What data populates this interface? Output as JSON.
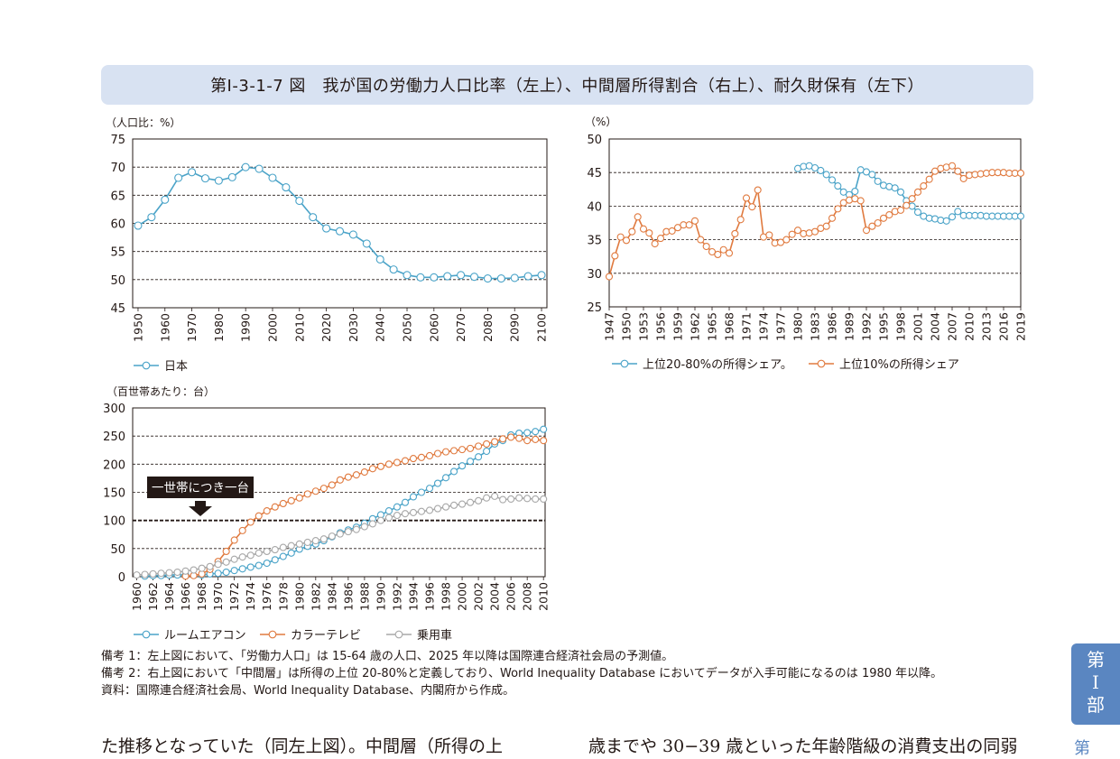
{
  "title": "第Ⅰ-3-1-7 図　我が国の労働力人口比率（左上）、中間層所得割合（右上）、耐久財保有（左下）",
  "chart_data": [
    {
      "id": "labor",
      "type": "line",
      "unit_label": "（人口比：%）",
      "ylim": [
        45,
        75
      ],
      "yticks": [
        45,
        50,
        55,
        60,
        65,
        70,
        75
      ],
      "xlim": [
        1948,
        2102
      ],
      "xticks": [
        1950,
        1960,
        1970,
        1980,
        1990,
        2000,
        2010,
        2020,
        2030,
        2040,
        2050,
        2060,
        2070,
        2080,
        2090,
        2100
      ],
      "grid": "horizontal dashed",
      "legend_position": "bottom-left",
      "series": [
        {
          "name": "日本",
          "color": "#4aa3c8",
          "x": [
            1950,
            1955,
            1960,
            1965,
            1970,
            1975,
            1980,
            1985,
            1990,
            1995,
            2000,
            2005,
            2010,
            2015,
            2020,
            2025,
            2030,
            2035,
            2040,
            2045,
            2050,
            2055,
            2060,
            2065,
            2070,
            2075,
            2080,
            2085,
            2090,
            2095,
            2100
          ],
          "y": [
            59.6,
            61.1,
            64.2,
            68.1,
            69.1,
            68.0,
            67.6,
            68.2,
            70.0,
            69.7,
            68.1,
            66.4,
            64.0,
            61.1,
            59.1,
            58.6,
            58.0,
            56.4,
            53.6,
            51.8,
            50.8,
            50.4,
            50.4,
            50.6,
            50.8,
            50.5,
            50.2,
            50.2,
            50.3,
            50.6,
            50.8
          ]
        }
      ]
    },
    {
      "id": "income",
      "type": "line",
      "unit_label": "（%）",
      "ylim": [
        25,
        50
      ],
      "yticks": [
        25,
        30,
        35,
        40,
        45,
        50
      ],
      "xlim": [
        1947,
        2019
      ],
      "xticks": [
        1947,
        1950,
        1953,
        1956,
        1959,
        1962,
        1965,
        1968,
        1971,
        1974,
        1977,
        1980,
        1983,
        1986,
        1989,
        1992,
        1995,
        1998,
        2001,
        2004,
        2007,
        2010,
        2013,
        2016,
        2019
      ],
      "grid": "horizontal dashed",
      "legend_position": "bottom",
      "series": [
        {
          "name": "上位20-80%の所得シェア。",
          "color": "#4aa3c8",
          "x": [
            1980,
            1981,
            1982,
            1983,
            1984,
            1985,
            1986,
            1987,
            1988,
            1989,
            1990,
            1991,
            1992,
            1993,
            1994,
            1995,
            1996,
            1997,
            1998,
            1999,
            2000,
            2001,
            2002,
            2003,
            2004,
            2005,
            2006,
            2007,
            2008,
            2009,
            2010,
            2011,
            2012,
            2013,
            2014,
            2015,
            2016,
            2017,
            2018,
            2019
          ],
          "y": [
            45.6,
            45.9,
            46.0,
            45.7,
            45.3,
            44.7,
            43.9,
            43.0,
            42.1,
            41.7,
            42.2,
            45.4,
            45.1,
            44.7,
            43.7,
            43.1,
            42.9,
            42.7,
            42.1,
            40.8,
            40.0,
            39.1,
            38.5,
            38.2,
            38.1,
            37.9,
            37.8,
            38.4,
            39.2,
            38.6,
            38.6,
            38.6,
            38.6,
            38.5,
            38.5,
            38.5,
            38.5,
            38.5,
            38.5,
            38.5
          ]
        },
        {
          "name": "上位10%の所得シェア",
          "color": "#e07a3f",
          "x": [
            1947,
            1948,
            1949,
            1950,
            1951,
            1952,
            1953,
            1954,
            1955,
            1956,
            1957,
            1958,
            1959,
            1960,
            1961,
            1962,
            1963,
            1964,
            1965,
            1966,
            1967,
            1968,
            1969,
            1970,
            1971,
            1972,
            1973,
            1974,
            1975,
            1976,
            1977,
            1978,
            1979,
            1980,
            1981,
            1982,
            1983,
            1984,
            1985,
            1986,
            1987,
            1988,
            1989,
            1990,
            1991,
            1992,
            1993,
            1994,
            1995,
            1996,
            1997,
            1998,
            1999,
            2000,
            2001,
            2002,
            2003,
            2004,
            2005,
            2006,
            2007,
            2008,
            2009,
            2010,
            2011,
            2012,
            2013,
            2014,
            2015,
            2016,
            2017,
            2018,
            2019
          ],
          "y": [
            29.5,
            32.6,
            35.4,
            34.9,
            36.2,
            38.4,
            36.6,
            36.0,
            34.4,
            35.2,
            36.2,
            36.3,
            36.8,
            37.2,
            37.2,
            37.8,
            35.0,
            34.0,
            33.2,
            32.8,
            33.5,
            33.0,
            35.9,
            38.0,
            41.2,
            39.9,
            42.4,
            35.4,
            35.7,
            34.5,
            34.6,
            35.0,
            35.8,
            36.4,
            35.9,
            36.0,
            36.2,
            36.7,
            37.0,
            38.2,
            39.6,
            40.5,
            40.9,
            41.1,
            40.8,
            36.4,
            37.0,
            37.5,
            38.2,
            38.7,
            39.2,
            39.4,
            40.1,
            41.1,
            42.1,
            43.0,
            44.0,
            45.2,
            45.6,
            45.8,
            46.0,
            45.2,
            44.1,
            44.6,
            44.7,
            44.8,
            44.9,
            45.0,
            45.0,
            45.0,
            44.9,
            44.9,
            44.9
          ]
        }
      ]
    },
    {
      "id": "durables",
      "type": "line",
      "unit_label": "（百世帯あたり：台）",
      "ylim": [
        0,
        300
      ],
      "yticks": [
        0,
        50,
        100,
        150,
        200,
        250,
        300
      ],
      "xlim": [
        1959.5,
        2010.2
      ],
      "xticks": [
        1960,
        1962,
        1964,
        1966,
        1968,
        1970,
        1972,
        1974,
        1976,
        1978,
        1980,
        1982,
        1984,
        1986,
        1988,
        1990,
        1992,
        1994,
        1996,
        1998,
        2000,
        2002,
        2004,
        2006,
        2008,
        2010
      ],
      "grid": "horizontal dashed",
      "legend_position": "bottom-left",
      "annotation": {
        "text": "一世帯につき一台",
        "y": 100
      },
      "series": [
        {
          "name": "ルームエアコン",
          "color": "#4aa3c8",
          "x": [
            1961,
            1962,
            1963,
            1964,
            1965,
            1966,
            1968,
            1969,
            1970,
            1971,
            1972,
            1973,
            1974,
            1975,
            1976,
            1977,
            1978,
            1979,
            1980,
            1981,
            1982,
            1983,
            1984,
            1985,
            1986,
            1987,
            1988,
            1989,
            1990,
            1991,
            1992,
            1993,
            1994,
            1995,
            1996,
            1997,
            1998,
            1999,
            2000,
            2001,
            2002,
            2003,
            2004,
            2005,
            2006,
            2007,
            2008,
            2009,
            2010
          ],
          "y": [
            1,
            2,
            2,
            3,
            3,
            3,
            3,
            5,
            6,
            8,
            11,
            14,
            17,
            20,
            24,
            30,
            36,
            42,
            49,
            54,
            58,
            64,
            71,
            78,
            83,
            88,
            95,
            103,
            110,
            117,
            124,
            132,
            142,
            150,
            157,
            166,
            176,
            187,
            197,
            205,
            213,
            223,
            236,
            242,
            252,
            255,
            256,
            258,
            262
          ]
        },
        {
          "name": "カラーテレビ",
          "color": "#e07a3f",
          "x": [
            1966,
            1967,
            1968,
            1969,
            1970,
            1971,
            1972,
            1973,
            1974,
            1975,
            1976,
            1977,
            1978,
            1979,
            1980,
            1981,
            1982,
            1983,
            1984,
            1985,
            1986,
            1987,
            1988,
            1989,
            1990,
            1991,
            1992,
            1993,
            1994,
            1995,
            1996,
            1997,
            1998,
            1999,
            2000,
            2001,
            2002,
            2003,
            2004,
            2005,
            2006,
            2007,
            2008,
            2009,
            2010
          ],
          "y": [
            1,
            2,
            5,
            13,
            27,
            45,
            65,
            82,
            97,
            108,
            117,
            124,
            130,
            135,
            140,
            147,
            152,
            157,
            163,
            172,
            177,
            181,
            186,
            192,
            196,
            200,
            203,
            206,
            210,
            212,
            215,
            219,
            222,
            224,
            226,
            228,
            232,
            236,
            240,
            245,
            248,
            246,
            242,
            244,
            242
          ]
        },
        {
          "name": "乗用車",
          "color": "#a8a8a8",
          "x": [
            1960,
            1961,
            1962,
            1963,
            1964,
            1965,
            1966,
            1967,
            1968,
            1969,
            1970,
            1971,
            1972,
            1973,
            1974,
            1975,
            1976,
            1977,
            1978,
            1979,
            1980,
            1981,
            1982,
            1983,
            1984,
            1985,
            1986,
            1987,
            1988,
            1989,
            1990,
            1991,
            1992,
            1993,
            1994,
            1995,
            1996,
            1997,
            1998,
            1999,
            2000,
            2001,
            2002,
            2003,
            2004,
            2005,
            2006,
            2007,
            2008,
            2009,
            2010
          ],
          "y": [
            3,
            4,
            5,
            6,
            7,
            8,
            10,
            12,
            15,
            18,
            22,
            26,
            31,
            35,
            38,
            42,
            45,
            48,
            52,
            55,
            58,
            61,
            64,
            67,
            72,
            76,
            80,
            84,
            89,
            94,
            100,
            105,
            109,
            112,
            114,
            116,
            118,
            121,
            124,
            127,
            129,
            132,
            135,
            140,
            143,
            137,
            138,
            140,
            139,
            138,
            138
          ]
        }
      ]
    }
  ],
  "notes": [
    "備考 1：左上図において、「労働力人口」は 15-64 歳の人口、2025 年以降は国際連合経済社会局の予測値。",
    "備考 2：右上図において「中間層」は所得の上位 20-80%と定義しており、World Inequality Database においてデータが入手可能になるのは 1980 年以降。",
    "資料：国際連合経済社会局、World Inequality Database、内閣府から作成。"
  ],
  "side_tab": {
    "line1": "第",
    "line2": "Ⅰ",
    "line3": "部",
    "next": "第"
  },
  "body_text": {
    "left": "た推移となっていた（同左上図）。中間層（所得の上",
    "right": "歳までや 30−39 歳といった年齢階級の消費支出の同弱"
  }
}
